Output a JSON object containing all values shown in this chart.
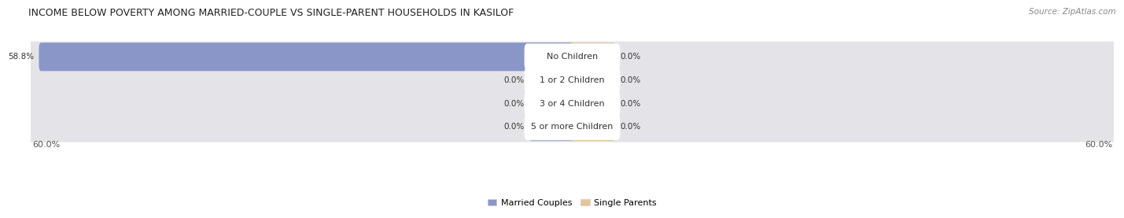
{
  "title": "INCOME BELOW POVERTY AMONG MARRIED-COUPLE VS SINGLE-PARENT HOUSEHOLDS IN KASILOF",
  "source": "Source: ZipAtlas.com",
  "categories": [
    "No Children",
    "1 or 2 Children",
    "3 or 4 Children",
    "5 or more Children"
  ],
  "married_values": [
    58.8,
    0.0,
    0.0,
    0.0
  ],
  "single_values": [
    0.0,
    0.0,
    0.0,
    0.0
  ],
  "married_color": "#8B96C8",
  "married_color_light": "#AAB2D8",
  "single_color": "#E8C49A",
  "axis_limit": 60.0,
  "min_bar_width": 4.5,
  "bg_color": "#ffffff",
  "bar_bg_color": "#e4e4e8",
  "label_pill_color": "#ffffff",
  "title_fontsize": 9.0,
  "source_fontsize": 7.5,
  "label_fontsize": 7.5,
  "category_fontsize": 8.0,
  "legend_fontsize": 8.0,
  "axis_label_fontsize": 8.0,
  "bar_height": 0.72,
  "bar_gap": 0.28
}
